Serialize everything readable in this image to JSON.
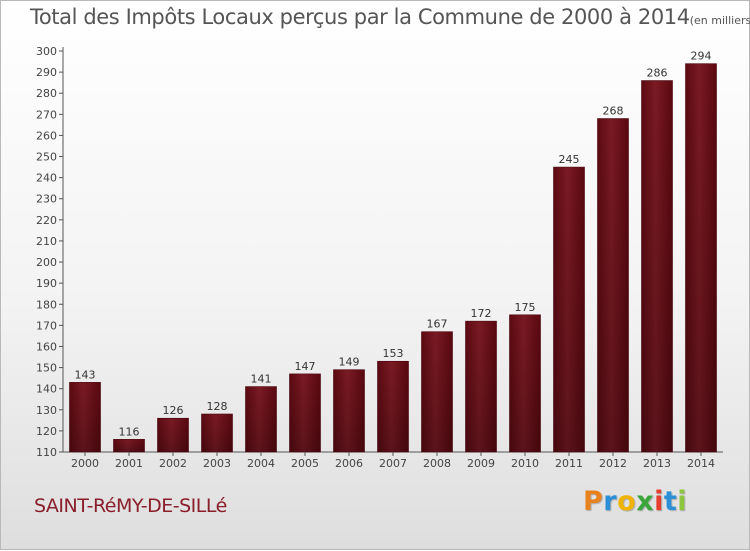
{
  "chart_data": {
    "type": "bar",
    "title": "Total des Impôts Locaux perçus par la Commune de 2000 à 2014",
    "subtitle": "(en milliers d'€)",
    "categories": [
      "2000",
      "2001",
      "2002",
      "2003",
      "2004",
      "2005",
      "2006",
      "2007",
      "2008",
      "2009",
      "2010",
      "2011",
      "2012",
      "2013",
      "2014"
    ],
    "values": [
      143,
      116,
      126,
      128,
      141,
      147,
      149,
      153,
      167,
      172,
      175,
      245,
      268,
      286,
      294
    ],
    "ylim": [
      110,
      300
    ],
    "yticks": [
      110,
      120,
      130,
      140,
      150,
      160,
      170,
      180,
      190,
      200,
      210,
      220,
      230,
      240,
      250,
      260,
      270,
      280,
      290,
      300
    ],
    "grid": false,
    "legend": "none",
    "bar_color": "#7a1a24"
  },
  "commune": "SAINT-RéMY-DE-SILLé",
  "logo": {
    "letters": [
      "P",
      "r",
      "o",
      "x",
      "i",
      "t",
      "i"
    ],
    "colors": [
      "#e8821e",
      "#2a8fd6",
      "#f0b400",
      "#3aa63a",
      "#e63c2f",
      "#2a8fd6",
      "#8cc63f"
    ]
  }
}
